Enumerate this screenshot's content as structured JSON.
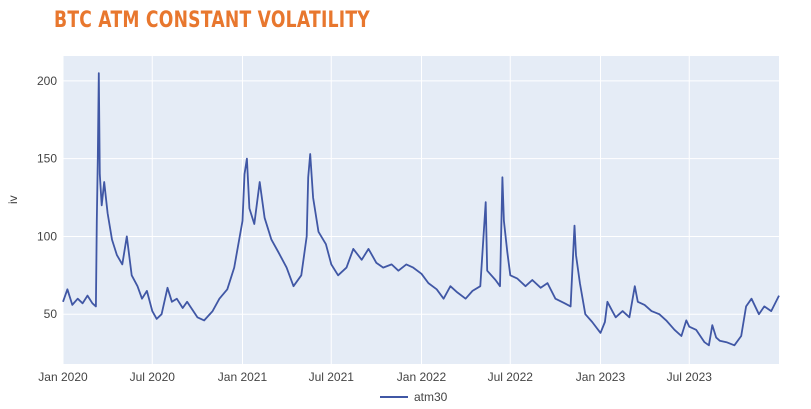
{
  "chart_data": {
    "type": "line",
    "title": "BTC ATM CONSTANT VOLATILITY",
    "xlabel": "",
    "ylabel": "iv",
    "x_range": [
      "2020-01-01",
      "2023-12-31"
    ],
    "ylim": [
      18,
      216
    ],
    "y_ticks": [
      50,
      100,
      150,
      200
    ],
    "x_ticks": [
      {
        "date": "2020-01-01",
        "label": "Jan 2020"
      },
      {
        "date": "2020-07-01",
        "label": "Jul 2020"
      },
      {
        "date": "2021-01-01",
        "label": "Jan 2021"
      },
      {
        "date": "2021-07-01",
        "label": "Jul 2021"
      },
      {
        "date": "2022-01-01",
        "label": "Jan 2022"
      },
      {
        "date": "2022-07-01",
        "label": "Jul 2022"
      },
      {
        "date": "2023-01-01",
        "label": "Jan 2023"
      },
      {
        "date": "2023-07-01",
        "label": "Jul 2023"
      }
    ],
    "grid": true,
    "legend_position": "bottom-center",
    "series": [
      {
        "name": "atm30",
        "color": "#4057a5",
        "points": [
          [
            "2020-01-01",
            58
          ],
          [
            "2020-01-10",
            66
          ],
          [
            "2020-01-20",
            56
          ],
          [
            "2020-01-31",
            60
          ],
          [
            "2020-02-10",
            57
          ],
          [
            "2020-02-20",
            62
          ],
          [
            "2020-03-01",
            57
          ],
          [
            "2020-03-08",
            55
          ],
          [
            "2020-03-10",
            110
          ],
          [
            "2020-03-12",
            150
          ],
          [
            "2020-03-14",
            205
          ],
          [
            "2020-03-16",
            140
          ],
          [
            "2020-03-20",
            120
          ],
          [
            "2020-03-25",
            135
          ],
          [
            "2020-04-01",
            115
          ],
          [
            "2020-04-10",
            98
          ],
          [
            "2020-04-20",
            88
          ],
          [
            "2020-05-01",
            82
          ],
          [
            "2020-05-10",
            100
          ],
          [
            "2020-05-20",
            75
          ],
          [
            "2020-06-01",
            68
          ],
          [
            "2020-06-10",
            60
          ],
          [
            "2020-06-20",
            65
          ],
          [
            "2020-07-01",
            52
          ],
          [
            "2020-07-10",
            47
          ],
          [
            "2020-07-20",
            50
          ],
          [
            "2020-08-01",
            67
          ],
          [
            "2020-08-10",
            58
          ],
          [
            "2020-08-20",
            60
          ],
          [
            "2020-09-01",
            54
          ],
          [
            "2020-09-10",
            58
          ],
          [
            "2020-10-01",
            48
          ],
          [
            "2020-10-15",
            46
          ],
          [
            "2020-11-01",
            52
          ],
          [
            "2020-11-15",
            60
          ],
          [
            "2020-12-01",
            66
          ],
          [
            "2020-12-15",
            80
          ],
          [
            "2021-01-01",
            110
          ],
          [
            "2021-01-05",
            140
          ],
          [
            "2021-01-10",
            150
          ],
          [
            "2021-01-15",
            118
          ],
          [
            "2021-01-25",
            108
          ],
          [
            "2021-02-05",
            135
          ],
          [
            "2021-02-15",
            112
          ],
          [
            "2021-03-01",
            98
          ],
          [
            "2021-03-15",
            90
          ],
          [
            "2021-04-01",
            80
          ],
          [
            "2021-04-15",
            68
          ],
          [
            "2021-05-01",
            75
          ],
          [
            "2021-05-12",
            100
          ],
          [
            "2021-05-15",
            138
          ],
          [
            "2021-05-19",
            153
          ],
          [
            "2021-05-25",
            125
          ],
          [
            "2021-06-05",
            103
          ],
          [
            "2021-06-20",
            95
          ],
          [
            "2021-07-01",
            82
          ],
          [
            "2021-07-15",
            75
          ],
          [
            "2021-08-01",
            80
          ],
          [
            "2021-08-15",
            92
          ],
          [
            "2021-09-01",
            85
          ],
          [
            "2021-09-15",
            92
          ],
          [
            "2021-10-01",
            83
          ],
          [
            "2021-10-15",
            80
          ],
          [
            "2021-11-01",
            82
          ],
          [
            "2021-11-15",
            78
          ],
          [
            "2021-12-01",
            82
          ],
          [
            "2021-12-15",
            80
          ],
          [
            "2022-01-01",
            76
          ],
          [
            "2022-01-15",
            70
          ],
          [
            "2022-02-01",
            66
          ],
          [
            "2022-02-15",
            60
          ],
          [
            "2022-03-01",
            68
          ],
          [
            "2022-03-15",
            64
          ],
          [
            "2022-04-01",
            60
          ],
          [
            "2022-04-15",
            65
          ],
          [
            "2022-05-01",
            68
          ],
          [
            "2022-05-12",
            122
          ],
          [
            "2022-05-15",
            78
          ],
          [
            "2022-06-01",
            72
          ],
          [
            "2022-06-10",
            68
          ],
          [
            "2022-06-15",
            138
          ],
          [
            "2022-06-18",
            110
          ],
          [
            "2022-06-25",
            90
          ],
          [
            "2022-07-01",
            75
          ],
          [
            "2022-07-15",
            73
          ],
          [
            "2022-08-01",
            68
          ],
          [
            "2022-08-15",
            72
          ],
          [
            "2022-09-01",
            67
          ],
          [
            "2022-09-15",
            70
          ],
          [
            "2022-10-01",
            60
          ],
          [
            "2022-10-20",
            57
          ],
          [
            "2022-11-01",
            55
          ],
          [
            "2022-11-09",
            107
          ],
          [
            "2022-11-12",
            88
          ],
          [
            "2022-11-20",
            70
          ],
          [
            "2022-12-01",
            50
          ],
          [
            "2022-12-15",
            45
          ],
          [
            "2023-01-01",
            38
          ],
          [
            "2023-01-10",
            45
          ],
          [
            "2023-01-15",
            58
          ],
          [
            "2023-01-25",
            52
          ],
          [
            "2023-02-01",
            48
          ],
          [
            "2023-02-15",
            52
          ],
          [
            "2023-03-01",
            48
          ],
          [
            "2023-03-12",
            68
          ],
          [
            "2023-03-18",
            58
          ],
          [
            "2023-04-01",
            56
          ],
          [
            "2023-04-15",
            52
          ],
          [
            "2023-05-01",
            50
          ],
          [
            "2023-05-15",
            46
          ],
          [
            "2023-06-01",
            40
          ],
          [
            "2023-06-15",
            36
          ],
          [
            "2023-06-25",
            46
          ],
          [
            "2023-07-01",
            42
          ],
          [
            "2023-07-15",
            40
          ],
          [
            "2023-08-01",
            32
          ],
          [
            "2023-08-10",
            30
          ],
          [
            "2023-08-17",
            43
          ],
          [
            "2023-08-25",
            35
          ],
          [
            "2023-09-01",
            33
          ],
          [
            "2023-09-15",
            32
          ],
          [
            "2023-10-01",
            30
          ],
          [
            "2023-10-15",
            36
          ],
          [
            "2023-10-25",
            55
          ],
          [
            "2023-11-05",
            60
          ],
          [
            "2023-11-20",
            50
          ],
          [
            "2023-12-01",
            55
          ],
          [
            "2023-12-15",
            52
          ],
          [
            "2023-12-31",
            62
          ]
        ]
      }
    ]
  }
}
